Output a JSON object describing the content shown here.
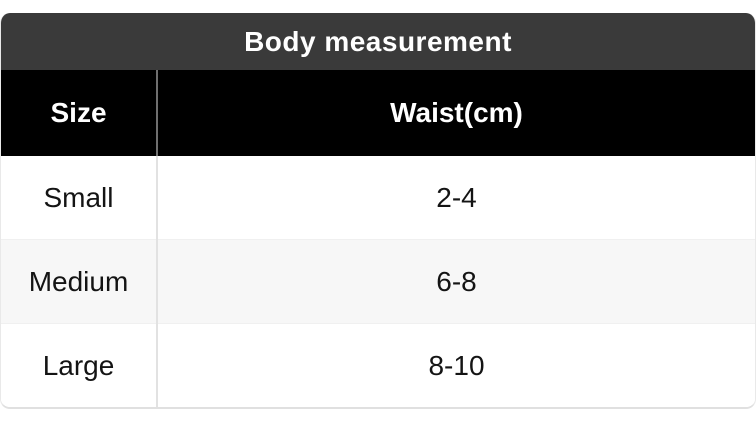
{
  "title": "Body measurement",
  "table": {
    "columns": [
      "Size",
      "Waist(cm)"
    ],
    "rows": [
      [
        "Small",
        "2-4"
      ],
      [
        "Medium",
        "6-8"
      ],
      [
        "Large",
        "8-10"
      ]
    ]
  },
  "colors": {
    "title_bar_background": "#3a3a3a",
    "title_text": "#ffffff",
    "header_row_background": "#000000",
    "header_text": "#ffffff",
    "row_background": "#ffffff",
    "alt_row_background": "#f7f7f7",
    "cell_text": "#141414",
    "header_separator": "#6f6f6f",
    "body_separator": "#e2e2e2",
    "outer_border": "#e0e0e0"
  }
}
